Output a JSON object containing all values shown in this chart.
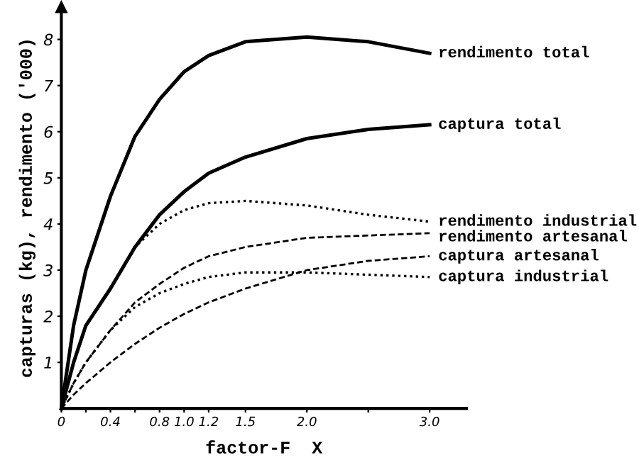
{
  "chart_data": {
    "type": "line",
    "xlabel": "factor-F  X",
    "ylabel": "capturas (kg), rendimento ('000)",
    "xlim": [
      0,
      3.3
    ],
    "ylim": [
      0,
      8.7
    ],
    "xticks": [
      0,
      {
        "value": 0.2,
        "label": null
      },
      0.4,
      {
        "value": 0.6,
        "label": null
      },
      0.8,
      {
        "value": 1,
        "label": "1.0"
      },
      1.2,
      1.5,
      {
        "value": 2,
        "label": "2.0"
      },
      {
        "value": 2.5,
        "label": null
      },
      {
        "value": 3,
        "label": "3.0"
      }
    ],
    "yticks": [
      1,
      2,
      3,
      4,
      5,
      6,
      7,
      8
    ],
    "grid": false,
    "legend": false,
    "x": [
      0,
      0.1,
      0.2,
      0.4,
      0.6,
      0.8,
      1.0,
      1.2,
      1.5,
      2.0,
      2.5,
      3.0
    ],
    "series": [
      {
        "name": "rendimento total",
        "color": "#000000",
        "line_style": "solid",
        "values": [
          0,
          1.8,
          3.0,
          4.6,
          5.9,
          6.7,
          7.3,
          7.65,
          7.95,
          8.05,
          7.95,
          7.7
        ]
      },
      {
        "name": "captura total",
        "color": "#000000",
        "line_style": "solid",
        "values": [
          0,
          1.0,
          1.8,
          2.6,
          3.5,
          4.2,
          4.7,
          5.1,
          5.45,
          5.85,
          6.05,
          6.15
        ]
      },
      {
        "name": "rendimento industrial",
        "color": "#000000",
        "line_style": "dotted",
        "values": [
          0,
          1.0,
          1.8,
          2.6,
          3.5,
          4.0,
          4.3,
          4.45,
          4.5,
          4.4,
          4.2,
          4.05
        ]
      },
      {
        "name": "rendimento artesanal",
        "color": "#000000",
        "line_style": "dashed",
        "values": [
          0,
          0.55,
          1.0,
          1.7,
          2.3,
          2.7,
          3.05,
          3.3,
          3.5,
          3.7,
          3.75,
          3.8
        ]
      },
      {
        "name": "captura artesanal",
        "color": "#000000",
        "line_style": "dashed",
        "values": [
          0,
          0.3,
          0.55,
          1.0,
          1.4,
          1.75,
          2.05,
          2.3,
          2.6,
          3.0,
          3.2,
          3.3
        ]
      },
      {
        "name": "captura industrial",
        "color": "#000000",
        "line_style": "dotted",
        "values": [
          0,
          0.55,
          1.0,
          1.7,
          2.2,
          2.5,
          2.7,
          2.85,
          2.95,
          2.95,
          2.9,
          2.85
        ]
      }
    ]
  }
}
